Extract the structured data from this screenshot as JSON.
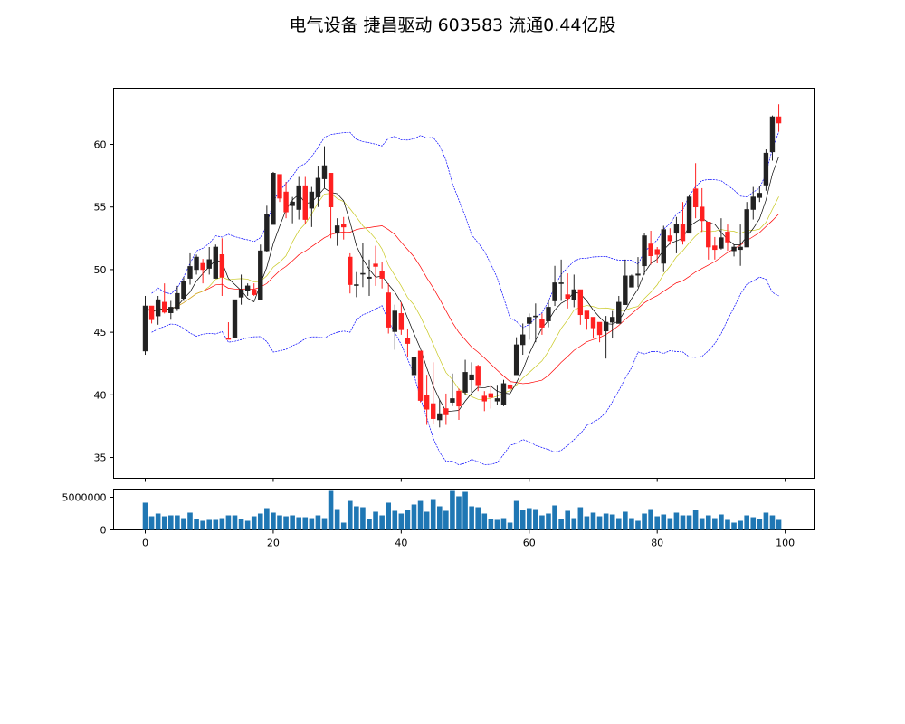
{
  "chart_data": {
    "type": "candlestick",
    "title": "电气设备 捷昌驱动 603583 流通0.44亿股",
    "colors": {
      "up": "#222222",
      "down": "#ff2020",
      "ma5": "#000000",
      "ma10": "#c8c820",
      "ma20": "#ff0000",
      "boll": "#0000ff",
      "volume": "#1f77b4"
    },
    "indicators": [
      "MA5",
      "MA10",
      "MA20",
      "BOLL upper",
      "BOLL lower"
    ],
    "price_ylim": [
      33.34,
      64.48
    ],
    "xlim": [
      -4.95,
      104.65
    ],
    "volume_ylim": [
      0,
      6250000
    ],
    "price_yticks": [
      35,
      40,
      45,
      50,
      55,
      60
    ],
    "xticks": [
      0,
      20,
      40,
      60,
      80,
      100
    ],
    "volume_yticks": [
      0,
      5000000
    ],
    "open": [
      43.5,
      47.1,
      46.3,
      47.4,
      46.55,
      46.9,
      47.7,
      49.3,
      50.0,
      50.5,
      50.1,
      49.3,
      51.2,
      44.5,
      44.6,
      47.8,
      48.3,
      48.4,
      47.6,
      51.5,
      53.6,
      57.6,
      56.2,
      55.1,
      54.8,
      56.7,
      54.9,
      55.8,
      57.25,
      57.7,
      52.9,
      53.6,
      51.0,
      48.75,
      49.65,
      49.3,
      50.45,
      49.9,
      48.15,
      45.05,
      46.5,
      44.5,
      41.6,
      43.5,
      40.0,
      39.3,
      38.0,
      38.9,
      39.4,
      40.3,
      40.2,
      41.2,
      42.3,
      39.9,
      40.1,
      39.5,
      39.2,
      40.8,
      41.6,
      44.0,
      45.7,
      46.25,
      46.0,
      45.9,
      47.5,
      48.9,
      48.0,
      47.6,
      48.4,
      46.7,
      46.2,
      45.8,
      45.1,
      45.8,
      45.7,
      47.2,
      48.6,
      49.55,
      50.3,
      52.05,
      51.6,
      50.5,
      52.7,
      52.9,
      53.6,
      52.9,
      56.45,
      55.0,
      53.8,
      51.9,
      51.7,
      53.0,
      51.5,
      51.6,
      51.8,
      54.8,
      55.75,
      56.75,
      59.4,
      62.2
    ],
    "high": [
      47.9,
      47.1,
      47.9,
      48.9,
      47.5,
      48.7,
      49.4,
      51.3,
      51.2,
      50.85,
      51.8,
      52.0,
      52.5,
      45.8,
      47.6,
      49.6,
      48.9,
      48.9,
      52.0,
      55.1,
      57.8,
      57.6,
      57.0,
      55.8,
      57.4,
      57.4,
      56.6,
      58.3,
      59.85,
      57.7,
      54.1,
      54.2,
      51.3,
      49.8,
      52.1,
      50.8,
      51.9,
      50.6,
      48.9,
      47.2,
      47.4,
      45.3,
      43.6,
      43.5,
      41.6,
      42.6,
      39.6,
      40.1,
      41.7,
      40.5,
      42.8,
      42.6,
      42.4,
      40.3,
      40.8,
      40.8,
      41.2,
      41.3,
      44.6,
      45.7,
      46.5,
      47.3,
      46.5,
      47.6,
      50.3,
      50.8,
      49.7,
      49.6,
      48.4,
      46.7,
      46.2,
      45.8,
      46.3,
      46.7,
      47.9,
      50.8,
      49.6,
      51.0,
      52.9,
      53.1,
      51.8,
      53.5,
      53.3,
      54.2,
      55.4,
      56.0,
      58.5,
      56.5,
      53.8,
      52.6,
      54.1,
      53.6,
      52.0,
      53.6,
      55.4,
      56.6,
      56.7,
      59.6,
      62.3,
      63.2
    ],
    "low": [
      43.2,
      45.7,
      45.6,
      46.5,
      46.0,
      46.7,
      47.5,
      48.8,
      49.6,
      48.9,
      49.6,
      49.3,
      47.9,
      44.5,
      44.6,
      47.2,
      47.9,
      47.9,
      47.6,
      51.4,
      53.6,
      55.4,
      54.1,
      53.7,
      54.0,
      53.6,
      53.4,
      55.0,
      56.5,
      52.5,
      51.9,
      52.4,
      48.1,
      47.8,
      48.6,
      47.9,
      48.7,
      48.5,
      44.9,
      43.6,
      44.8,
      43.0,
      40.4,
      39.4,
      37.6,
      37.7,
      37.4,
      37.6,
      39.1,
      38.0,
      40.0,
      40.2,
      40.3,
      38.7,
      38.9,
      39.2,
      39.1,
      40.3,
      41.6,
      43.2,
      44.4,
      44.2,
      44.8,
      45.4,
      47.1,
      47.5,
      46.9,
      47.0,
      45.6,
      45.2,
      44.5,
      44.2,
      42.9,
      44.5,
      45.7,
      47.2,
      48.6,
      48.6,
      49.6,
      50.4,
      50.5,
      49.8,
      52.0,
      51.3,
      52.0,
      52.9,
      54.1,
      53.0,
      50.8,
      50.8,
      51.6,
      51.5,
      51.05,
      50.3,
      51.8,
      54.0,
      55.4,
      56.3,
      58.7,
      61.0
    ],
    "close": [
      47.1,
      46.0,
      47.6,
      46.6,
      47.0,
      48.1,
      49.1,
      50.25,
      51.0,
      50.0,
      50.8,
      51.8,
      49.4,
      44.45,
      47.6,
      48.4,
      48.7,
      48.0,
      51.5,
      54.4,
      57.7,
      55.7,
      54.6,
      55.4,
      56.7,
      54.0,
      56.2,
      57.3,
      58.3,
      55.0,
      53.5,
      53.4,
      48.8,
      48.8,
      49.7,
      49.4,
      50.25,
      49.3,
      45.4,
      46.7,
      45.2,
      44.1,
      43.0,
      39.55,
      38.85,
      38.1,
      38.5,
      38.4,
      39.7,
      39.1,
      41.8,
      41.6,
      40.8,
      39.5,
      39.8,
      39.7,
      40.9,
      40.5,
      44.0,
      44.8,
      46.2,
      46.3,
      45.4,
      47.0,
      48.95,
      48.95,
      47.7,
      48.4,
      46.4,
      46.05,
      45.35,
      44.8,
      45.8,
      46.2,
      47.4,
      49.5,
      49.5,
      49.65,
      52.7,
      51.1,
      51.2,
      53.2,
      52.3,
      53.6,
      52.3,
      55.8,
      55.0,
      53.9,
      51.8,
      51.6,
      52.55,
      52.2,
      51.8,
      51.8,
      54.8,
      55.8,
      56.1,
      59.3,
      62.2,
      61.7
    ],
    "volume": [
      4170000,
      2080000,
      2500000,
      2080000,
      2220000,
      2220000,
      1800000,
      2640000,
      1670000,
      1390000,
      1530000,
      1530000,
      1800000,
      2220000,
      2220000,
      1670000,
      1390000,
      2080000,
      2500000,
      3330000,
      2640000,
      2220000,
      2080000,
      2220000,
      1940000,
      1940000,
      1800000,
      2220000,
      1800000,
      6110000,
      3190000,
      1110000,
      4440000,
      3610000,
      3470000,
      1670000,
      2780000,
      2220000,
      4170000,
      2920000,
      2500000,
      3060000,
      3890000,
      4440000,
      2780000,
      4720000,
      3610000,
      2920000,
      6110000,
      5140000,
      5830000,
      3610000,
      3470000,
      2500000,
      1670000,
      1530000,
      1800000,
      1110000,
      4440000,
      3060000,
      3330000,
      3190000,
      2220000,
      2500000,
      3750000,
      1670000,
      2920000,
      1800000,
      3470000,
      2080000,
      2640000,
      2080000,
      2500000,
      2360000,
      1800000,
      2780000,
      1800000,
      1390000,
      2500000,
      3190000,
      2080000,
      2360000,
      1800000,
      2640000,
      2220000,
      2220000,
      3060000,
      1800000,
      2220000,
      1800000,
      2360000,
      1530000,
      1110000,
      1390000,
      2220000,
      1940000,
      1670000,
      2640000,
      2220000,
      1530000
    ]
  }
}
